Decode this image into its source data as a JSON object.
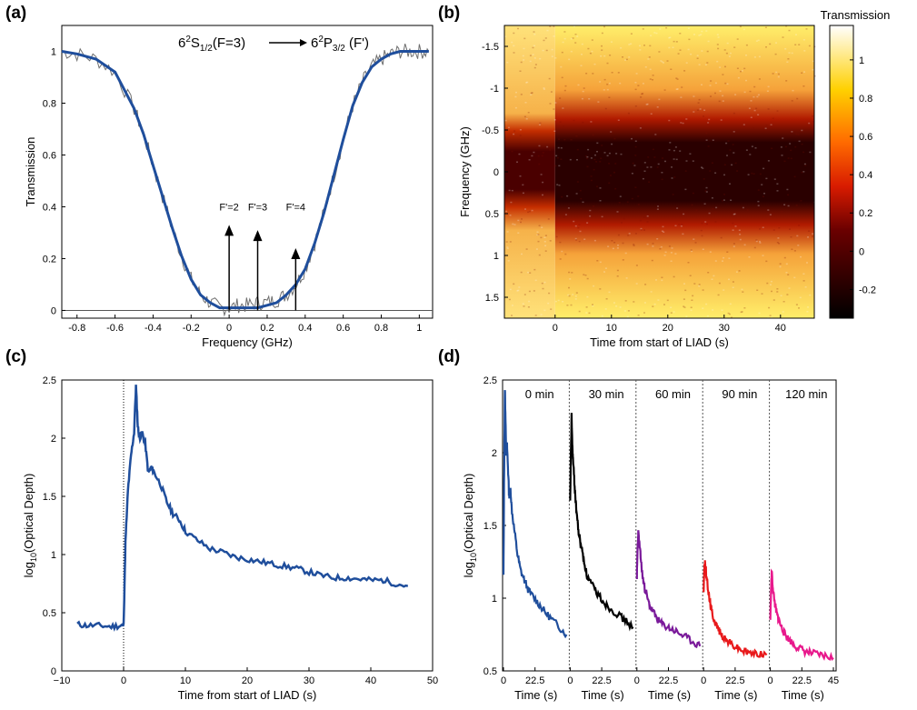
{
  "panels": {
    "a": "(a)",
    "b": "(b)",
    "c": "(c)",
    "d": "(d)"
  },
  "colors": {
    "blue": "#1f4e9c",
    "gray": "#6e6e6e",
    "black": "#000000",
    "purple": "#7a1a9a",
    "red": "#e8191b",
    "pink": "#e8198c"
  },
  "chart_data": [
    {
      "id": "a",
      "type": "line",
      "title": "6²S1/2(F=3) → 6²P3/2(F')",
      "title_parts": {
        "base1": "6",
        "sup1": "2",
        "s": "S",
        "sub1": "1/2",
        "mid": "(F=3)",
        "base2": "6",
        "sup2": "2",
        "p": "P",
        "sub2": "3/2",
        "end": "(F')"
      },
      "xlabel": "Frequency (GHz)",
      "ylabel": "Transmission",
      "xlim": [
        -0.88,
        1.07
      ],
      "ylim": [
        -0.03,
        1.1
      ],
      "xticks": [
        -0.8,
        -0.6,
        -0.4,
        -0.2,
        0,
        0.2,
        0.4,
        0.6,
        0.8,
        1
      ],
      "xtick_labels": [
        "-0.8",
        "-0.6",
        "-0.4",
        "-0.2",
        "0",
        "0.2",
        "0.4",
        "0.6",
        "0.8",
        "1"
      ],
      "yticks": [
        0,
        0.2,
        0.4,
        0.6,
        0.8,
        1
      ],
      "ytick_labels": [
        "0",
        "0.2",
        "0.4",
        "0.6",
        "0.8",
        "1"
      ],
      "series": [
        {
          "name": "data",
          "color": "#6e6e6e",
          "x": [
            -0.88,
            -0.8,
            -0.7,
            -0.6,
            -0.5,
            -0.45,
            -0.4,
            -0.35,
            -0.3,
            -0.25,
            -0.2,
            -0.15,
            -0.1,
            -0.05,
            0,
            0.05,
            0.1,
            0.15,
            0.2,
            0.25,
            0.3,
            0.35,
            0.4,
            0.45,
            0.5,
            0.55,
            0.6,
            0.65,
            0.7,
            0.75,
            0.8,
            0.85,
            0.9,
            0.95,
            1.0,
            1.05
          ],
          "y": [
            1.0,
            0.99,
            0.97,
            0.92,
            0.78,
            0.68,
            0.56,
            0.44,
            0.32,
            0.21,
            0.12,
            0.06,
            0.03,
            0.01,
            0.01,
            0.02,
            0.02,
            0.03,
            0.03,
            0.04,
            0.06,
            0.1,
            0.16,
            0.26,
            0.38,
            0.52,
            0.66,
            0.79,
            0.88,
            0.94,
            0.97,
            0.99,
            1.0,
            1.0,
            1.0,
            1.0
          ]
        },
        {
          "name": "fit",
          "color": "#1f4e9c",
          "x": [
            -0.88,
            -0.8,
            -0.7,
            -0.6,
            -0.5,
            -0.45,
            -0.4,
            -0.35,
            -0.3,
            -0.25,
            -0.2,
            -0.15,
            -0.1,
            -0.05,
            0,
            0.05,
            0.1,
            0.15,
            0.2,
            0.25,
            0.3,
            0.35,
            0.4,
            0.45,
            0.5,
            0.55,
            0.6,
            0.65,
            0.7,
            0.75,
            0.8,
            0.85,
            0.9,
            0.95,
            1.0,
            1.05
          ],
          "y": [
            1.0,
            0.99,
            0.97,
            0.92,
            0.78,
            0.68,
            0.56,
            0.44,
            0.32,
            0.21,
            0.12,
            0.06,
            0.03,
            0.01,
            0.01,
            0.01,
            0.01,
            0.01,
            0.02,
            0.03,
            0.06,
            0.1,
            0.16,
            0.26,
            0.38,
            0.52,
            0.66,
            0.79,
            0.88,
            0.94,
            0.97,
            0.99,
            1.0,
            1.0,
            1.0,
            1.0
          ]
        }
      ],
      "annotations": [
        {
          "label": "F'=2",
          "x": 0.0,
          "y_top": 0.33
        },
        {
          "label": "F'=3",
          "x": 0.15,
          "y_top": 0.31
        },
        {
          "label": "F'=4",
          "x": 0.35,
          "y_top": 0.24
        }
      ]
    },
    {
      "id": "b",
      "type": "heatmap",
      "xlabel": "Time from start of LIAD (s)",
      "ylabel": "Frequency (GHz)",
      "xlim": [
        -9,
        46
      ],
      "ylim": [
        1.75,
        -1.75
      ],
      "xticks": [
        0,
        10,
        20,
        30,
        40
      ],
      "xtick_labels": [
        "0",
        "10",
        "20",
        "30",
        "40"
      ],
      "yticks": [
        -1.5,
        -1,
        -0.5,
        0,
        0.5,
        1,
        1.5
      ],
      "ytick_labels": [
        "-1.5",
        "-1",
        "-0.5",
        "0",
        "0.5",
        "1",
        "1.5"
      ],
      "colorbar": {
        "label": "Transmission",
        "range": [
          -0.35,
          1.18
        ],
        "ticks": [
          -0.2,
          0,
          0.2,
          0.4,
          0.6,
          0.8,
          1
        ],
        "tick_labels": [
          "-0.2",
          "0",
          "0.2",
          "0.4",
          "0.6",
          "0.8",
          "1"
        ],
        "colormap": "hot"
      }
    },
    {
      "id": "c",
      "type": "line",
      "xlabel": "Time from start of LIAD (s)",
      "ylabel_main": "log",
      "ylabel_sub": "10",
      "ylabel_rest": "(Optical Depth)",
      "xlim": [
        -10,
        50
      ],
      "ylim": [
        0,
        2.5
      ],
      "xticks": [
        -10,
        0,
        10,
        20,
        30,
        40,
        50
      ],
      "xtick_labels": [
        "−10",
        "0",
        "10",
        "20",
        "30",
        "40",
        "50"
      ],
      "yticks": [
        0,
        0.5,
        1,
        1.5,
        2,
        2.5
      ],
      "ytick_labels": [
        "0",
        "0.5",
        "1",
        "1.5",
        "2",
        "2.5"
      ],
      "vline_x": 0,
      "series": [
        {
          "name": "OD",
          "color": "#1f4e9c",
          "x": [
            -7.5,
            -6,
            -4,
            -2,
            -0.5,
            0,
            0.3,
            0.7,
            1.2,
            1.7,
            2.0,
            2.3,
            2.6,
            3.0,
            3.5,
            4.0,
            4.5,
            5.0,
            6,
            7,
            8,
            9,
            10,
            12,
            14,
            16,
            18,
            20,
            22,
            24,
            26,
            28,
            30,
            32,
            34,
            36,
            38,
            40,
            42,
            44,
            46
          ],
          "y": [
            0.4,
            0.39,
            0.39,
            0.38,
            0.39,
            0.39,
            1.1,
            1.55,
            1.85,
            2.05,
            2.45,
            2.1,
            2.0,
            2.05,
            1.95,
            1.7,
            1.75,
            1.7,
            1.6,
            1.45,
            1.35,
            1.3,
            1.2,
            1.12,
            1.05,
            1.02,
            0.98,
            0.96,
            0.94,
            0.92,
            0.9,
            0.88,
            0.85,
            0.82,
            0.8,
            0.8,
            0.79,
            0.78,
            0.78,
            0.75,
            0.73
          ]
        }
      ]
    },
    {
      "id": "d",
      "type": "line",
      "ylabel_main": "log",
      "ylabel_sub": "10",
      "ylabel_rest": "(Optical Depth)",
      "ylim": [
        0.5,
        2.5
      ],
      "yticks": [
        0.5,
        1,
        1.5,
        2,
        2.5
      ],
      "ytick_labels": [
        "0.5",
        "1",
        "1.5",
        "2",
        "2.5"
      ],
      "segment_xlim": [
        0,
        45
      ],
      "xtick_labels": [
        "0",
        "22.5",
        "45"
      ],
      "segments": [
        {
          "label": "0 min",
          "xlabel": "Time (s)",
          "color": "#1f4e9c",
          "x": [
            0,
            0.5,
            1,
            1.5,
            2,
            2.5,
            3,
            4,
            5,
            6,
            8,
            10,
            12,
            15,
            18,
            22,
            26,
            30,
            35,
            40,
            45
          ],
          "y": [
            1.15,
            1.9,
            2.45,
            2.2,
            2.0,
            2.05,
            1.95,
            1.7,
            1.75,
            1.6,
            1.45,
            1.3,
            1.2,
            1.12,
            1.05,
            1.0,
            0.95,
            0.9,
            0.85,
            0.8,
            0.75
          ]
        },
        {
          "label": "30 min",
          "xlabel": "Time (s)",
          "color": "#000000",
          "x": [
            0,
            0.5,
            1,
            1.5,
            2,
            3,
            4,
            5,
            6,
            8,
            10,
            12,
            15,
            18,
            22,
            26,
            30,
            35,
            40,
            45
          ],
          "y": [
            1.65,
            2.0,
            2.25,
            2.05,
            1.95,
            1.8,
            1.65,
            1.55,
            1.45,
            1.35,
            1.25,
            1.15,
            1.1,
            1.05,
            1.0,
            0.95,
            0.92,
            0.88,
            0.84,
            0.8
          ]
        },
        {
          "label": "60 min",
          "xlabel": "Time (s)",
          "color": "#7a1a9a",
          "x": [
            0,
            0.5,
            1,
            2,
            3,
            4,
            5,
            6,
            8,
            10,
            12,
            15,
            18,
            22,
            26,
            30,
            35,
            40,
            45
          ],
          "y": [
            1.15,
            1.35,
            1.45,
            1.35,
            1.25,
            1.15,
            1.1,
            1.05,
            0.98,
            0.93,
            0.9,
            0.85,
            0.82,
            0.8,
            0.78,
            0.76,
            0.73,
            0.7,
            0.67
          ]
        },
        {
          "label": "90 min",
          "xlabel": "Time (s)",
          "color": "#e8191b",
          "x": [
            0,
            0.5,
            1,
            2,
            3,
            4,
            5,
            6,
            8,
            10,
            12,
            15,
            18,
            22,
            26,
            30,
            35,
            40,
            45
          ],
          "y": [
            1.05,
            1.2,
            1.25,
            1.15,
            1.08,
            1.0,
            0.95,
            0.9,
            0.84,
            0.8,
            0.76,
            0.72,
            0.7,
            0.67,
            0.65,
            0.63,
            0.62,
            0.62,
            0.61
          ]
        },
        {
          "label": "120 min",
          "xlabel": "Time (s)",
          "color": "#e8198c",
          "x": [
            0,
            0.5,
            1,
            2,
            3,
            4,
            5,
            6,
            8,
            10,
            12,
            15,
            18,
            22,
            26,
            30,
            35,
            40,
            45
          ],
          "y": [
            0.85,
            1.05,
            1.18,
            1.05,
            0.98,
            0.92,
            0.88,
            0.85,
            0.8,
            0.76,
            0.73,
            0.7,
            0.67,
            0.65,
            0.63,
            0.62,
            0.61,
            0.6,
            0.59
          ]
        }
      ]
    }
  ]
}
